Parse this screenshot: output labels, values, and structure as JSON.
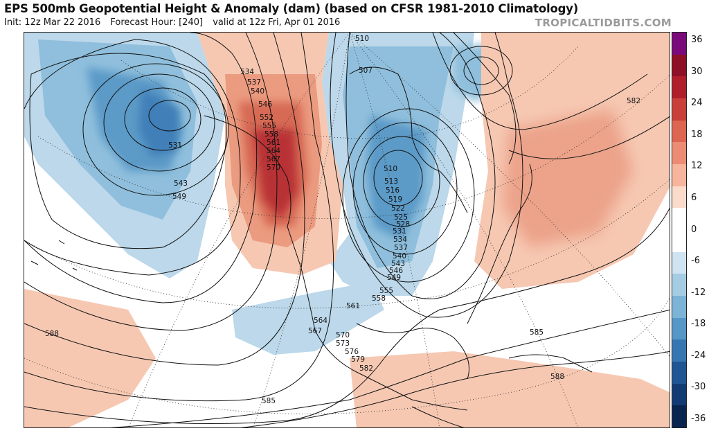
{
  "header": {
    "title": "EPS 500mb Geopotential Height & Anomaly (dam) (based on CFSR 1981-2010 Climatology)",
    "init": "Init: 12z Mar 22 2016",
    "forecast_hour": "Forecast Hour: [240]",
    "valid": "valid at 12z Fri, Apr 01 2016",
    "brand": "TROPICALTIDBITS.COM"
  },
  "colorbar": {
    "ticks": [
      "36",
      "30",
      "24",
      "18",
      "12",
      "6",
      "0",
      "-6",
      "-12",
      "-18",
      "-24",
      "-30",
      "-36"
    ],
    "colors": [
      "#7a0a7a",
      "#8e1026",
      "#b01e2c",
      "#c9403a",
      "#dd6652",
      "#ec8c74",
      "#f6b59c",
      "#fbdccb",
      "#ffffff",
      "#ffffff",
      "#cfe4f0",
      "#a5cce2",
      "#7db3d6",
      "#5697c7",
      "#3676b2",
      "#1f5594",
      "#133b73",
      "#0a2450"
    ]
  },
  "map": {
    "contour_labels": [
      {
        "text": "510"
      },
      {
        "text": "507"
      },
      {
        "text": "534"
      },
      {
        "text": "537"
      },
      {
        "text": "540"
      },
      {
        "text": "546"
      },
      {
        "text": "552"
      },
      {
        "text": "555"
      },
      {
        "text": "558"
      },
      {
        "text": "561"
      },
      {
        "text": "564"
      },
      {
        "text": "567"
      },
      {
        "text": "570"
      },
      {
        "text": "531"
      },
      {
        "text": "543"
      },
      {
        "text": "549"
      },
      {
        "text": "510"
      },
      {
        "text": "513"
      },
      {
        "text": "516"
      },
      {
        "text": "519"
      },
      {
        "text": "522"
      },
      {
        "text": "525"
      },
      {
        "text": "528"
      },
      {
        "text": "531"
      },
      {
        "text": "534"
      },
      {
        "text": "537"
      },
      {
        "text": "540"
      },
      {
        "text": "543"
      },
      {
        "text": "546"
      },
      {
        "text": "549"
      },
      {
        "text": "555"
      },
      {
        "text": "558"
      },
      {
        "text": "561"
      },
      {
        "text": "564"
      },
      {
        "text": "567"
      },
      {
        "text": "570"
      },
      {
        "text": "573"
      },
      {
        "text": "576"
      },
      {
        "text": "579"
      },
      {
        "text": "582"
      },
      {
        "text": "585"
      },
      {
        "text": "588"
      },
      {
        "text": "582"
      },
      {
        "text": "585"
      },
      {
        "text": "588"
      }
    ]
  }
}
